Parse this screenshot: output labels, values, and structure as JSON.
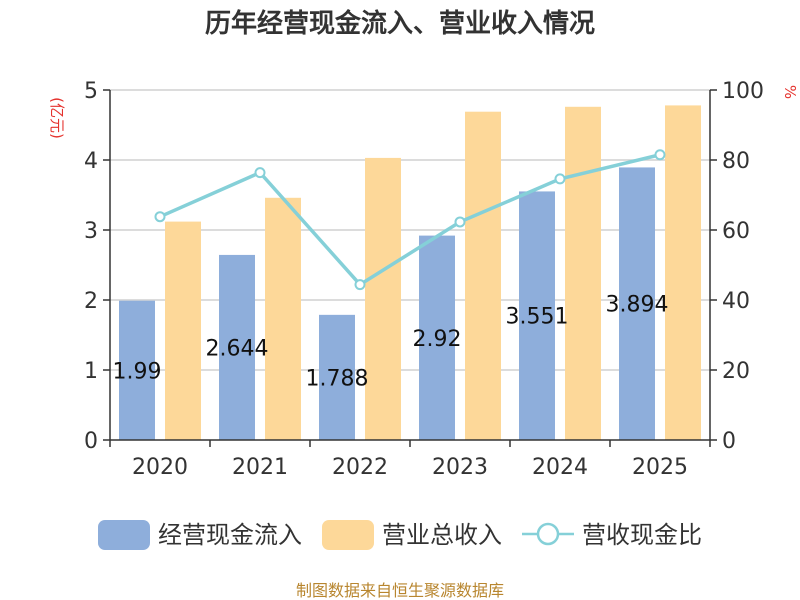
{
  "chart_data": {
    "type": "bar",
    "title": "历年经营现金流入、营业收入情况",
    "categories": [
      "2020",
      "2021",
      "2022",
      "2023",
      "2024",
      "2025"
    ],
    "left_axis": {
      "unit_label": "(亿元)",
      "ylim": [
        0,
        5
      ],
      "ticks": [
        "0",
        "1",
        "2",
        "3",
        "4",
        "5"
      ]
    },
    "right_axis": {
      "unit_label": "%",
      "ylim": [
        0,
        100
      ],
      "ticks": [
        "0",
        "20",
        "40",
        "60",
        "80",
        "100"
      ]
    },
    "series": [
      {
        "name": "经营现金流入",
        "type": "bar",
        "axis": "left",
        "color": "#8eaedb",
        "values": [
          1.99,
          2.644,
          1.788,
          2.92,
          3.551,
          3.894
        ],
        "labels": [
          "1.99",
          "2.644",
          "1.788",
          "2.92",
          "3.551",
          "3.894"
        ]
      },
      {
        "name": "营业总收入",
        "type": "bar",
        "axis": "left",
        "color": "#fdd899",
        "values": [
          3.12,
          3.46,
          4.03,
          4.69,
          4.76,
          4.78
        ]
      },
      {
        "name": "营收现金比",
        "type": "line",
        "axis": "right",
        "color": "#85d0d8",
        "values": [
          63.8,
          76.4,
          44.4,
          62.3,
          74.6,
          81.5
        ]
      }
    ],
    "grid": true,
    "legend_position": "bottom",
    "source": "制图数据来自恒生聚源数据库"
  }
}
